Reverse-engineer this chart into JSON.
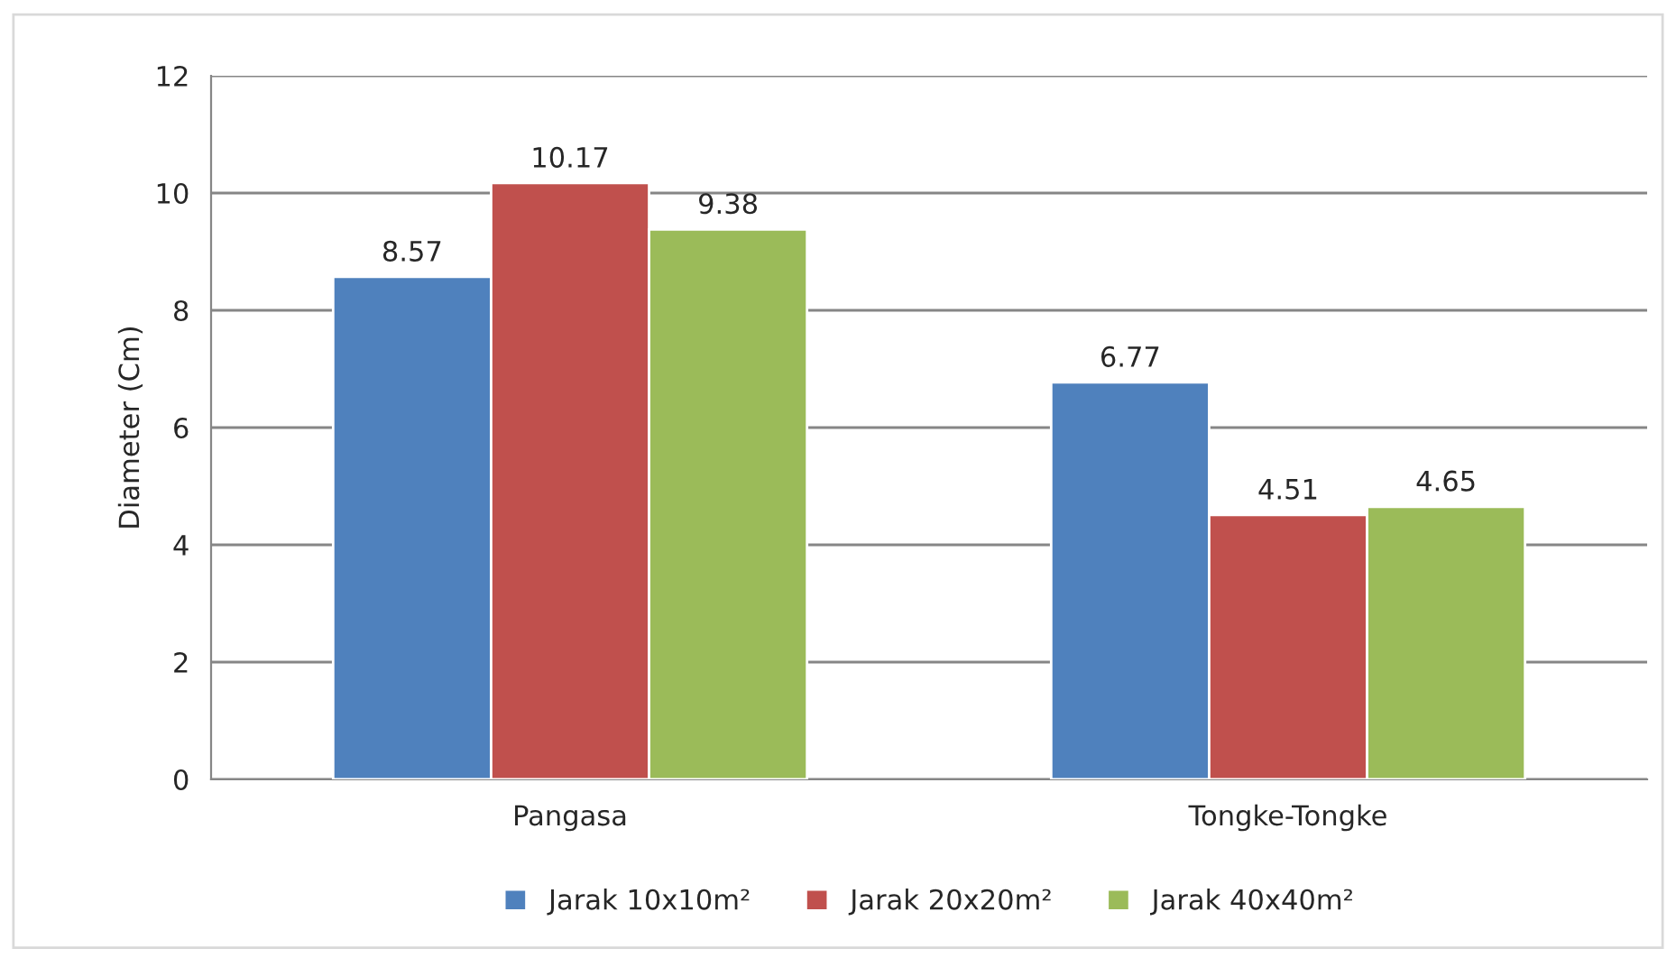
{
  "chart_data": {
    "type": "bar",
    "ylabel": "Diameter (Cm)",
    "categories": [
      "Pangasa",
      "Tongke-Tongke"
    ],
    "series": [
      {
        "name": "Jarak 10x10m²",
        "color": "#4f81bd",
        "values": [
          8.57,
          6.77
        ]
      },
      {
        "name": "Jarak 20x20m²",
        "color": "#c0504d",
        "values": [
          10.17,
          4.51
        ]
      },
      {
        "name": "Jarak 40x40m²",
        "color": "#9bbb59",
        "values": [
          9.38,
          4.65
        ]
      }
    ],
    "ylim": [
      0,
      12
    ],
    "yticks": [
      0,
      2,
      4,
      6,
      8,
      10,
      12
    ],
    "grid": "y",
    "legend": "bottom",
    "data_labels": true
  }
}
